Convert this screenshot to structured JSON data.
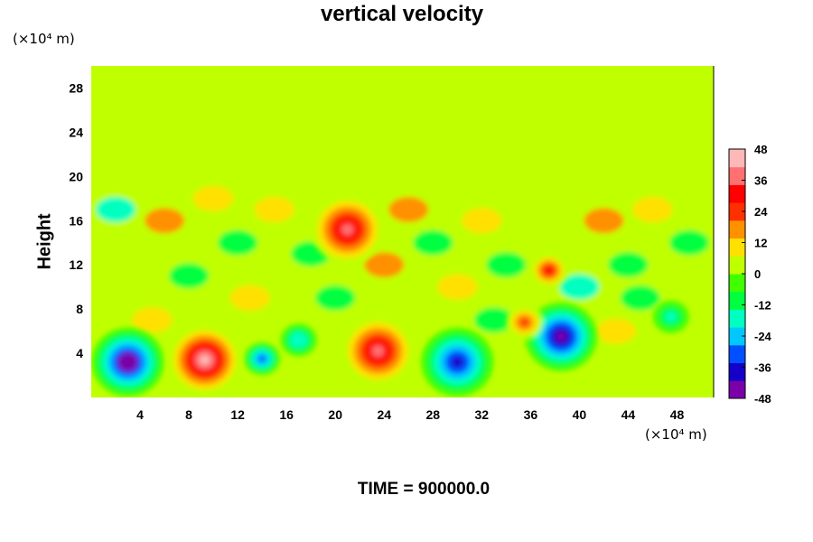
{
  "chart_data": {
    "type": "heatmap",
    "title": "vertical velocity",
    "ylabel": "Height",
    "y_unit": "(×10⁴ m)",
    "x_unit": "(×10⁴ m)",
    "x_ticks": [
      "4",
      "8",
      "12",
      "16",
      "20",
      "24",
      "28",
      "32",
      "36",
      "40",
      "44",
      "48"
    ],
    "x_tick_values": [
      4,
      8,
      12,
      16,
      20,
      24,
      28,
      32,
      36,
      40,
      44,
      48
    ],
    "y_ticks": [
      "4",
      "8",
      "12",
      "16",
      "20",
      "24",
      "28"
    ],
    "y_tick_values": [
      4,
      8,
      12,
      16,
      20,
      24,
      28
    ],
    "xlim": [
      0,
      51
    ],
    "ylim": [
      0,
      30
    ],
    "colorbar": {
      "ticks": [
        "48",
        "36",
        "24",
        "12",
        "0",
        "-12",
        "-24",
        "-36",
        "-48"
      ],
      "tick_values": [
        48,
        36,
        24,
        12,
        0,
        -12,
        -24,
        -36,
        -48
      ],
      "range": [
        -48,
        48
      ],
      "colors": [
        "#7a00a8",
        "#1400c8",
        "#0050ff",
        "#00c8ff",
        "#00ffc0",
        "#00ff40",
        "#40ff00",
        "#c0ff00",
        "#ffe000",
        "#ff9000",
        "#ff3000",
        "#ff0000",
        "#ff7070",
        "#ffb8b8"
      ]
    },
    "features": [
      {
        "x": 3.0,
        "y": 3.2,
        "value": -48
      },
      {
        "x": 9.3,
        "y": 3.4,
        "value": 46
      },
      {
        "x": 21.0,
        "y": 15.2,
        "value": 40
      },
      {
        "x": 23.5,
        "y": 4.2,
        "value": 40
      },
      {
        "x": 30.0,
        "y": 3.2,
        "value": -38
      },
      {
        "x": 38.5,
        "y": 5.5,
        "value": -44
      },
      {
        "x": 14.0,
        "y": 3.5,
        "value": -30
      },
      {
        "x": 17.0,
        "y": 5.2,
        "value": -20
      },
      {
        "x": 37.5,
        "y": 11.5,
        "value": 28
      },
      {
        "x": 35.5,
        "y": 6.8,
        "value": 24
      },
      {
        "x": 47.5,
        "y": 7.3,
        "value": -14
      }
    ]
  },
  "footer": {
    "time_label": "TIME = 900000.0"
  }
}
